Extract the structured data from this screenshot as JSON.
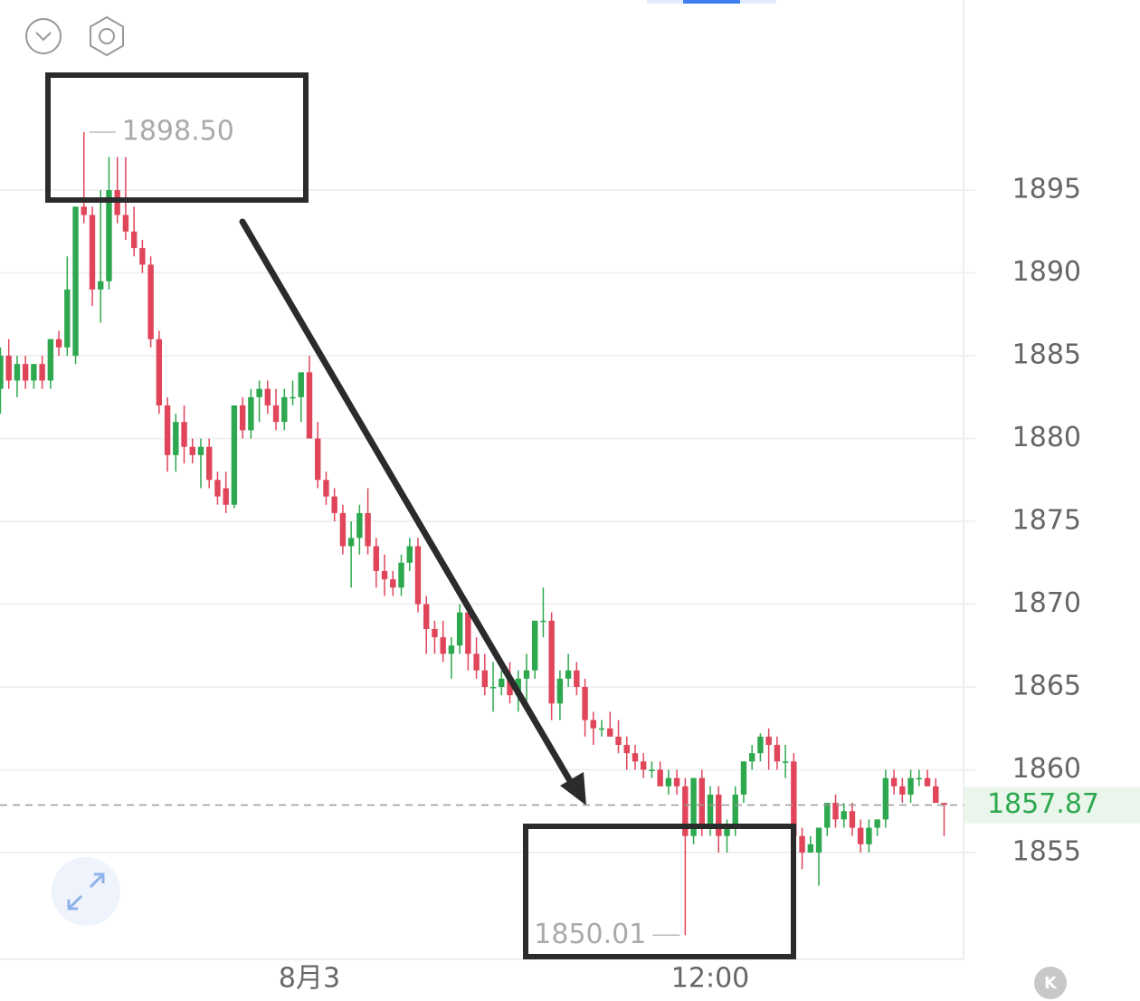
{
  "chart_data": {
    "type": "candlestick",
    "up_color": "#2ea84e",
    "down_color": "#e0455a",
    "ylim": [
      1848.55,
      1906.48
    ],
    "yticks": [
      1855,
      1860,
      1865,
      1870,
      1875,
      1880,
      1885,
      1890,
      1895
    ],
    "xlim": [
      -0.05,
      115.33
    ],
    "xticks": [
      {
        "value": 37,
        "label": "8月3"
      },
      {
        "value": 85,
        "label": "12:00"
      }
    ],
    "grid": true,
    "last_price": {
      "value": 1857.87,
      "label": "1857.87"
    },
    "annotations": [
      {
        "x": 10,
        "y": 1898.5,
        "label": "1898.50",
        "side": "right"
      },
      {
        "x": 82,
        "y": 1850.01,
        "label": "1850.01",
        "side": "left"
      }
    ],
    "candles": [
      [
        1883,
        1885.5,
        1881.5,
        1885
      ],
      [
        1885,
        1886,
        1883,
        1883.5
      ],
      [
        1883.5,
        1885,
        1882.5,
        1884.5
      ],
      [
        1884.5,
        1885,
        1883,
        1883.5
      ],
      [
        1883.5,
        1884.5,
        1883,
        1884.5
      ],
      [
        1884.5,
        1885,
        1883,
        1883.5
      ],
      [
        1883.5,
        1886,
        1883,
        1886
      ],
      [
        1886,
        1886.5,
        1885,
        1885.5
      ],
      [
        1885.5,
        1891,
        1885,
        1889
      ],
      [
        1885,
        1894,
        1884.5,
        1894
      ],
      [
        1894,
        1898.5,
        1893,
        1893.5
      ],
      [
        1893.5,
        1894,
        1888,
        1889
      ],
      [
        1889,
        1895,
        1887,
        1889.5
      ],
      [
        1889.5,
        1897,
        1889,
        1895
      ],
      [
        1895,
        1897,
        1893,
        1893.5
      ],
      [
        1893.5,
        1897,
        1892,
        1892.5
      ],
      [
        1892.5,
        1894,
        1891,
        1891.5
      ],
      [
        1891.5,
        1892,
        1890,
        1890.5
      ],
      [
        1890.5,
        1891,
        1885.5,
        1886
      ],
      [
        1886,
        1886.5,
        1881.5,
        1882
      ],
      [
        1882,
        1882.5,
        1878,
        1879
      ],
      [
        1879,
        1881.5,
        1878,
        1881
      ],
      [
        1881,
        1882,
        1878.5,
        1879.5
      ],
      [
        1879.5,
        1880,
        1878.5,
        1879
      ],
      [
        1879,
        1880,
        1877,
        1879.5
      ],
      [
        1879.5,
        1880,
        1877,
        1877.5
      ],
      [
        1877.5,
        1878,
        1876,
        1876.5
      ],
      [
        1877,
        1878,
        1875.5,
        1876
      ],
      [
        1876,
        1882,
        1875.8,
        1882
      ],
      [
        1882,
        1882.5,
        1880,
        1880.5
      ],
      [
        1880.5,
        1883,
        1880,
        1882.5
      ],
      [
        1882.5,
        1883.5,
        1881,
        1883
      ],
      [
        1883,
        1883.5,
        1881.5,
        1882
      ],
      [
        1882,
        1883,
        1880.5,
        1881
      ],
      [
        1881,
        1883,
        1880.5,
        1882.5
      ],
      [
        1882.5,
        1883.5,
        1882,
        1882.5
      ],
      [
        1882.5,
        1884,
        1881,
        1884
      ],
      [
        1884,
        1885,
        1880,
        1880
      ],
      [
        1880,
        1881,
        1877,
        1877.5
      ],
      [
        1877.5,
        1878,
        1876,
        1876.5
      ],
      [
        1876.5,
        1877,
        1875,
        1875.5
      ],
      [
        1875.5,
        1876,
        1873,
        1873.5
      ],
      [
        1873.5,
        1875,
        1871,
        1874
      ],
      [
        1874,
        1876,
        1873,
        1875.5
      ],
      [
        1875.5,
        1877,
        1873,
        1873.5
      ],
      [
        1873.5,
        1874,
        1871,
        1872
      ],
      [
        1872,
        1873,
        1870.5,
        1871.5
      ],
      [
        1871.5,
        1872,
        1870.5,
        1871
      ],
      [
        1871,
        1873,
        1870.5,
        1872.5
      ],
      [
        1872.5,
        1874,
        1872,
        1873.5
      ],
      [
        1873.5,
        1874,
        1869.5,
        1870
      ],
      [
        1870,
        1870.5,
        1867,
        1868.5
      ],
      [
        1868.5,
        1869,
        1867,
        1868
      ],
      [
        1868,
        1869,
        1866.5,
        1867
      ],
      [
        1867,
        1868,
        1865.5,
        1867.5
      ],
      [
        1867.5,
        1870,
        1867,
        1869.5
      ],
      [
        1869.5,
        1870,
        1866,
        1867
      ],
      [
        1867,
        1868,
        1865.5,
        1866
      ],
      [
        1866,
        1867,
        1864.5,
        1865
      ],
      [
        1865,
        1866.5,
        1863.5,
        1865
      ],
      [
        1865,
        1866,
        1864.5,
        1865.5
      ],
      [
        1865.5,
        1866.5,
        1864,
        1864.5
      ],
      [
        1864.5,
        1866,
        1863.5,
        1865.5
      ],
      [
        1865.5,
        1867,
        1864,
        1866
      ],
      [
        1866,
        1869,
        1865.5,
        1869
      ],
      [
        1869,
        1871,
        1868,
        1869
      ],
      [
        1869,
        1869.5,
        1863,
        1864
      ],
      [
        1864,
        1866,
        1863,
        1865.5
      ],
      [
        1865.5,
        1867,
        1865,
        1866
      ],
      [
        1866,
        1866.5,
        1864.5,
        1865
      ],
      [
        1865,
        1865.5,
        1862,
        1863
      ],
      [
        1863,
        1863.5,
        1861.5,
        1862.5
      ],
      [
        1862.5,
        1863,
        1862,
        1862.5
      ],
      [
        1862.5,
        1863.5,
        1862,
        1862
      ],
      [
        1862,
        1863,
        1861,
        1861.5
      ],
      [
        1861.5,
        1862,
        1860,
        1861
      ],
      [
        1861,
        1861.5,
        1860,
        1860.5
      ],
      [
        1860.5,
        1861,
        1859.5,
        1860
      ],
      [
        1860,
        1860.5,
        1859.5,
        1860
      ],
      [
        1860,
        1860.5,
        1859,
        1859
      ],
      [
        1859,
        1860,
        1858.5,
        1859.5
      ],
      [
        1859.5,
        1860,
        1858.5,
        1859
      ],
      [
        1859,
        1859.5,
        1850.01,
        1856
      ],
      [
        1856,
        1859.5,
        1855.5,
        1859.5
      ],
      [
        1859.5,
        1860,
        1856,
        1856.5
      ],
      [
        1856.5,
        1859,
        1856,
        1858.5
      ],
      [
        1858.5,
        1859,
        1855,
        1856
      ],
      [
        1856,
        1857,
        1855,
        1856.5
      ],
      [
        1856.5,
        1859,
        1856,
        1858.5
      ],
      [
        1858.5,
        1860.5,
        1858,
        1860.5
      ],
      [
        1860.5,
        1861.5,
        1860,
        1861
      ],
      [
        1861,
        1862.2,
        1860.5,
        1862
      ],
      [
        1862,
        1862.5,
        1860,
        1861.5
      ],
      [
        1861.5,
        1862,
        1860,
        1860.5
      ],
      [
        1860.5,
        1861.5,
        1859.5,
        1860.5
      ],
      [
        1860.5,
        1861,
        1856,
        1856
      ],
      [
        1856,
        1856.5,
        1854,
        1855
      ],
      [
        1855,
        1856,
        1855,
        1855.5
      ],
      [
        1855,
        1856.5,
        1853,
        1856.5
      ],
      [
        1856.5,
        1858,
        1856,
        1858
      ],
      [
        1858,
        1858.5,
        1856.5,
        1857
      ],
      [
        1857,
        1858,
        1856.5,
        1857.5
      ],
      [
        1857.5,
        1858,
        1856,
        1856.5
      ],
      [
        1856.5,
        1857,
        1855,
        1855.5
      ],
      [
        1855.5,
        1857,
        1855,
        1856.5
      ],
      [
        1856.5,
        1857,
        1856,
        1857
      ],
      [
        1857,
        1860,
        1856.5,
        1859.5
      ],
      [
        1859.5,
        1860,
        1858.5,
        1859
      ],
      [
        1859,
        1859.5,
        1858,
        1858.5
      ],
      [
        1858.5,
        1860,
        1858,
        1859.5
      ],
      [
        1859.5,
        1860,
        1859,
        1859.5
      ],
      [
        1859.5,
        1860,
        1859,
        1859
      ],
      [
        1859,
        1859.5,
        1858,
        1858
      ],
      [
        1858,
        1858,
        1856,
        1857.87
      ]
    ]
  }
}
